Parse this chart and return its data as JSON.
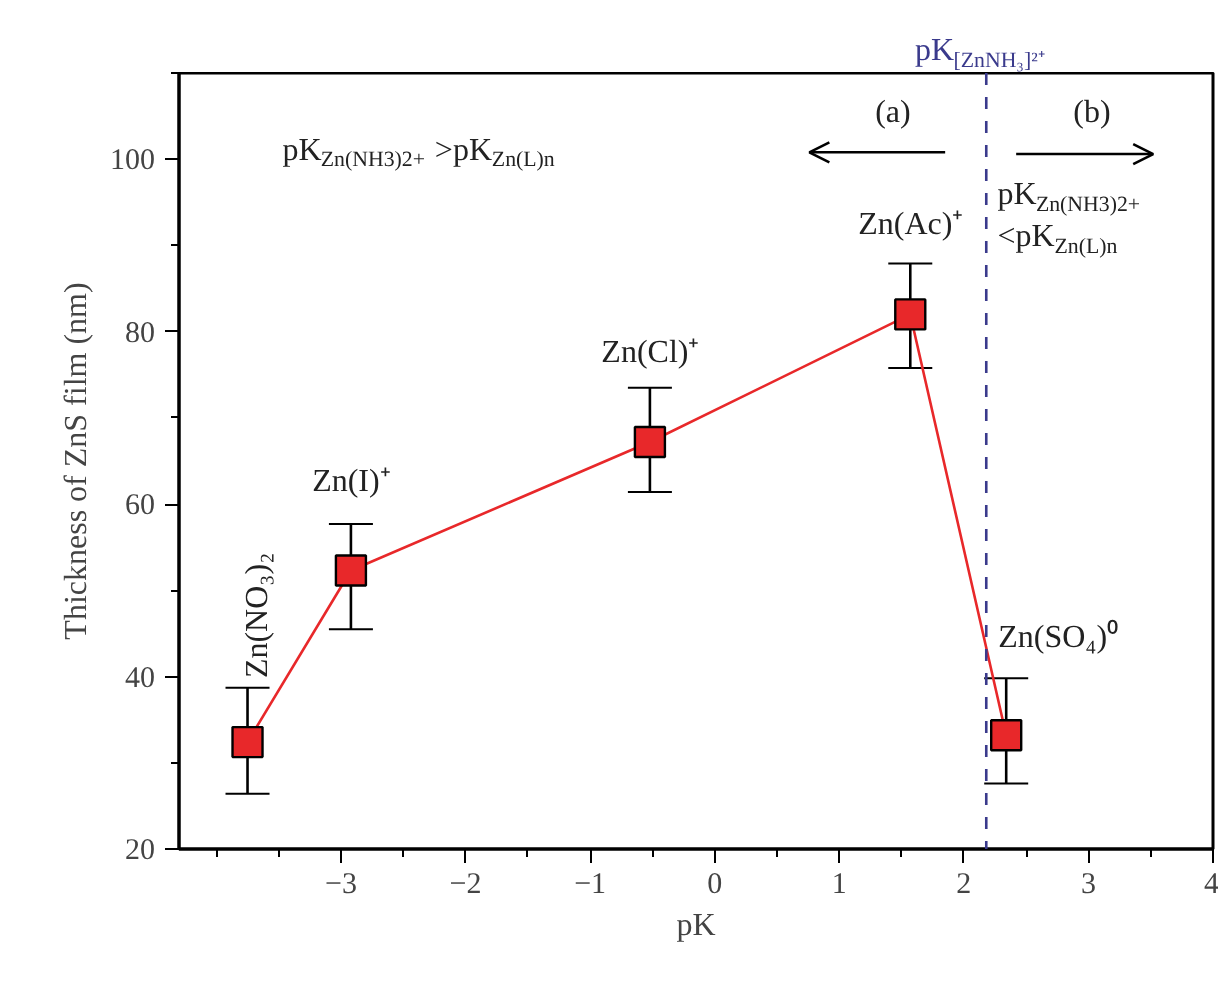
{
  "chart_data": {
    "type": "line",
    "xlabel": "pK",
    "ylabel": "Thickness of ZnS film (nm)",
    "x": [
      -3.75,
      -2.92,
      -0.52,
      1.57,
      2.34
    ],
    "series": [
      {
        "color": "#e8282a",
        "values": [
          32.4,
          52.3,
          67.2,
          82.0,
          33.2
        ],
        "errors": [
          [
            26.4,
            38.7
          ],
          [
            45.5,
            57.7
          ],
          [
            61.4,
            73.5
          ],
          [
            75.8,
            87.9
          ],
          [
            27.6,
            39.8
          ]
        ]
      }
    ],
    "marker": "square",
    "line_style": "solid",
    "xlim": [
      -4.3,
      4
    ],
    "xticks": [
      -3,
      -2,
      -1,
      0,
      1,
      2,
      3,
      4
    ],
    "ylim": [
      20,
      110
    ],
    "yticks": [
      20,
      40,
      60,
      80,
      100
    ],
    "grid": false,
    "ref_lines": [
      {
        "axis": "x",
        "value": 2.18,
        "label": "pK$_{[ZnNH₃]²⁺}$",
        "color": "#3a3a8c",
        "line_style": "dashed"
      }
    ],
    "annotations": [
      {
        "text": "Zn(NO₃)₂",
        "x": -3.75,
        "y": 32.4
      },
      {
        "text": "Zn(I)⁺",
        "x": -2.92,
        "y": 52.3
      },
      {
        "text": "Zn(Cl)⁺",
        "x": -0.52,
        "y": 67.2
      },
      {
        "text": "Zn(Ac)⁺",
        "x": 1.57,
        "y": 82.0
      },
      {
        "text": "Zn(SO₄)⁰",
        "x": 2.34,
        "y": 33.2
      },
      "(a)",
      "(b)",
      "pK$_{Zn(NH3)2+}$ >pK$_{Zn(L)n}$",
      "pK$_{Zn(NH3)2+}$\n<pK$_{Zn(L)n}$"
    ]
  }
}
